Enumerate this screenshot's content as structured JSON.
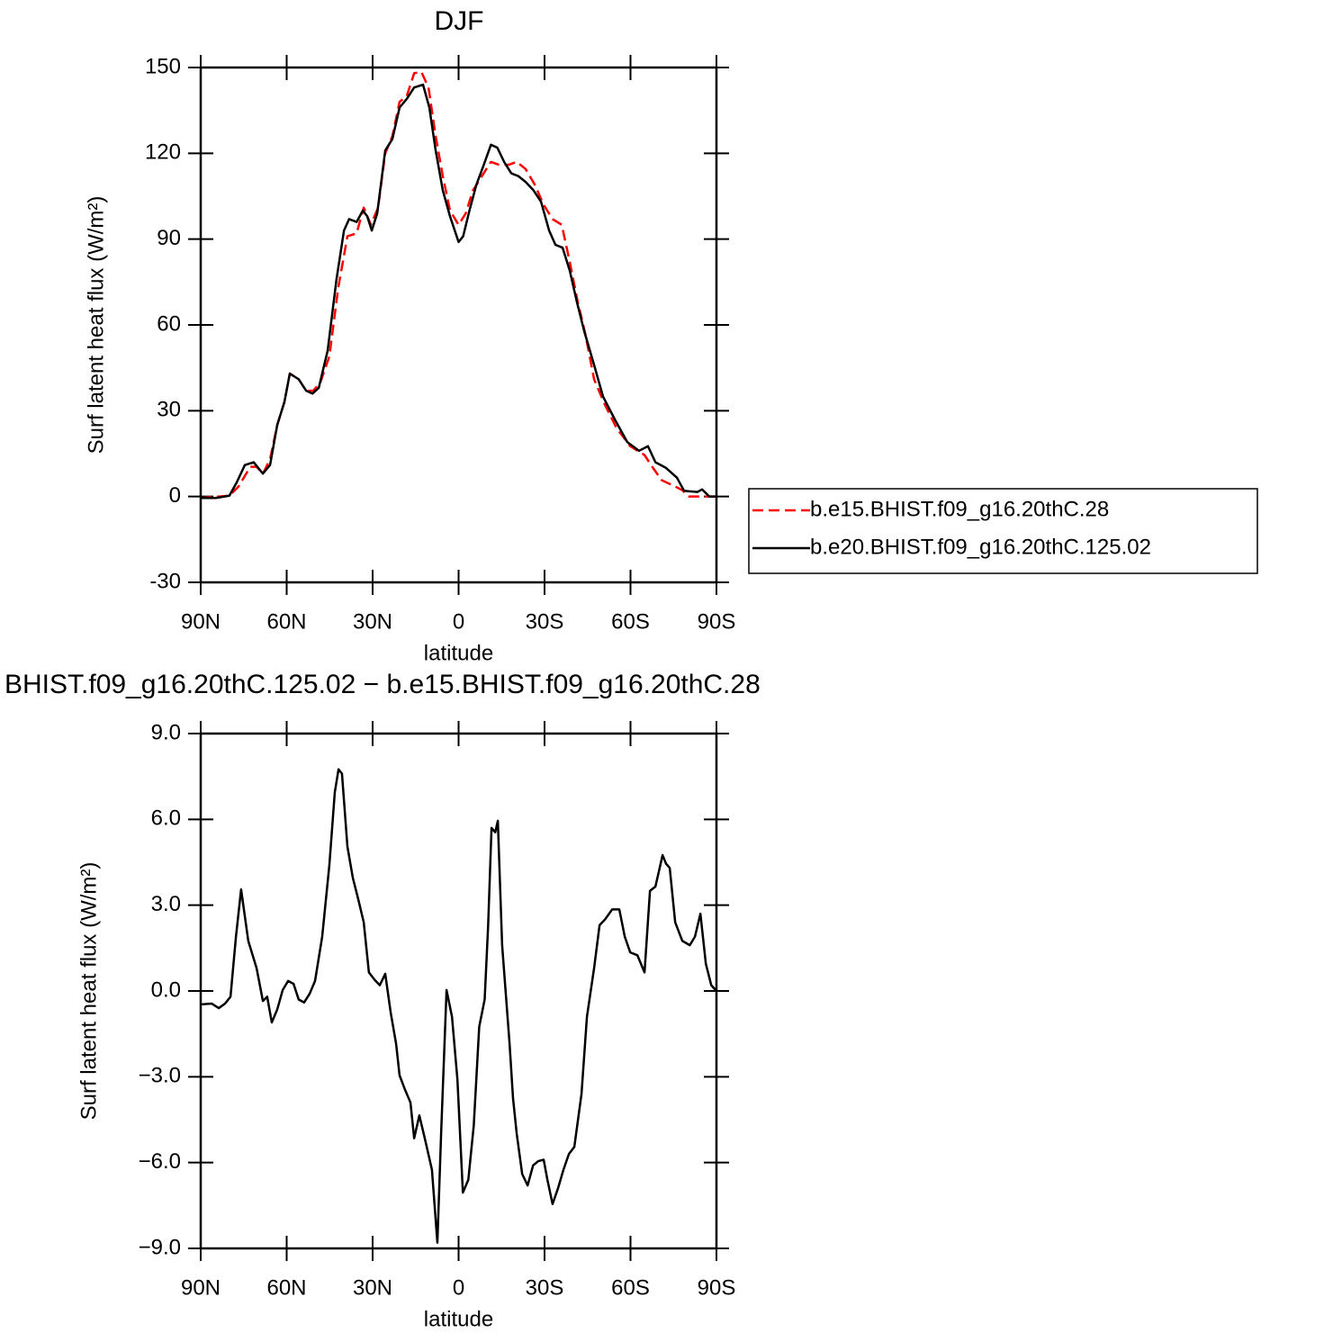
{
  "chart_data": [
    {
      "type": "line",
      "title": "DJF",
      "xlabel": "latitude",
      "ylabel": "Surf latent heat flux (W/m²)",
      "xlim": [
        90,
        -90
      ],
      "xticks": [
        {
          "value": 90,
          "label": "90N"
        },
        {
          "value": 60,
          "label": "60N"
        },
        {
          "value": 30,
          "label": "30N"
        },
        0,
        {
          "value": -30,
          "label": "30S"
        },
        {
          "value": -60,
          "label": "60S"
        },
        {
          "value": -90,
          "label": "90S"
        }
      ],
      "ylim": [
        -30,
        150
      ],
      "yticks": [
        -30,
        0,
        30,
        60,
        90,
        120,
        150
      ],
      "legend": "right",
      "series": [
        {
          "name": "b.e15.BHIST.f09_g16.20thC.28",
          "color": "#ff0000",
          "dash": true,
          "x": [
            90,
            80,
            76.8,
            72.7,
            70.5,
            68.3,
            65.8,
            63.3,
            60.8,
            58.9,
            55.8,
            53.2,
            50.7,
            48.2,
            45.1,
            42,
            38.8,
            35.6,
            33.1,
            30.6,
            28.1,
            25.6,
            23.1,
            20.6,
            18.1,
            15.5,
            13,
            10.5,
            8,
            5.5,
            3,
            0,
            -2.5,
            -5,
            -7.5,
            -11.3,
            -14.1,
            -17.5,
            -20.3,
            -23.4,
            -26.6,
            -29.7,
            -32.8,
            -36,
            -38.8,
            -41.6,
            -44.2,
            -47.3,
            -51.1,
            -55.1,
            -59.9,
            -64.9,
            -68,
            -70.9,
            -75.6,
            -78.1,
            -80.3,
            -90
          ],
          "values": [
            -0.5,
            0.3,
            3.5,
            10.4,
            10.4,
            8,
            13,
            25,
            33,
            43,
            41,
            37,
            37,
            40,
            49,
            73,
            91,
            92,
            101,
            95,
            101,
            120,
            126,
            138,
            140,
            148,
            148.5,
            143,
            126,
            112,
            100,
            95,
            99,
            107,
            111,
            117,
            116,
            116,
            117,
            114.5,
            109,
            102,
            97,
            95,
            82,
            68,
            57,
            41,
            32,
            24,
            17.6,
            14.5,
            9.8,
            5.7,
            3.5,
            2.2,
            0,
            0
          ]
        },
        {
          "name": "b.e20.BHIST.f09_g16.20thC.125.02",
          "color": "#000000",
          "dash": false,
          "x": [
            90,
            84.7,
            80,
            77.4,
            74.6,
            71.5,
            68.3,
            65.8,
            63.3,
            60.8,
            58.9,
            55.8,
            53.2,
            51,
            48.8,
            45.7,
            42.6,
            40,
            38.2,
            35.6,
            33.4,
            31.9,
            30.3,
            28.4,
            25.6,
            23.1,
            20.6,
            18.1,
            15.5,
            12.4,
            10.2,
            8,
            5.5,
            3,
            0,
            -1.6,
            -3.8,
            -6.2,
            -8.8,
            -11.3,
            -13.5,
            -15.9,
            -18.4,
            -20.9,
            -23.4,
            -26.2,
            -28.8,
            -31.6,
            -33.8,
            -36.3,
            -38.8,
            -41.3,
            -43.8,
            -47.3,
            -50.4,
            -54.5,
            -58.9,
            -63,
            -66.1,
            -68.7,
            -72.4,
            -76.2,
            -78.7,
            -83.4,
            -85,
            -87.5,
            -90
          ],
          "values": [
            -0.5,
            -0.5,
            0.3,
            5,
            11,
            12,
            8,
            11,
            25,
            33,
            43,
            41,
            37,
            36,
            38,
            51,
            76,
            93,
            97,
            96,
            100,
            98,
            93,
            99,
            121,
            125,
            136,
            139,
            143,
            144,
            136,
            121,
            107,
            98,
            89,
            91,
            100,
            109,
            116,
            123,
            122,
            117,
            113,
            112,
            110,
            107,
            103,
            93,
            88,
            87,
            79,
            68,
            58,
            46,
            35,
            27,
            19,
            16,
            17.6,
            12,
            10,
            6.6,
            2,
            1.6,
            2.5,
            0,
            0
          ]
        }
      ]
    },
    {
      "type": "line",
      "title": "BHIST.f09_g16.20thC.125.02 − b.e15.BHIST.f09_g16.20thC.28",
      "xlabel": "latitude",
      "ylabel": "Surf latent heat flux (W/m²)",
      "xlim": [
        90,
        -90
      ],
      "xticks": [
        {
          "value": 90,
          "label": "90N"
        },
        {
          "value": 60,
          "label": "60N"
        },
        {
          "value": 30,
          "label": "30N"
        },
        0,
        {
          "value": -30,
          "label": "30S"
        },
        {
          "value": -60,
          "label": "60S"
        },
        {
          "value": -90,
          "label": "90S"
        }
      ],
      "ylim": [
        -9,
        9
      ],
      "yticks": [
        {
          "value": -9,
          "label": "−9.0"
        },
        {
          "value": -6,
          "label": "−6.0"
        },
        {
          "value": -3,
          "label": "−3.0"
        },
        {
          "value": 0,
          "label": "0.0"
        },
        {
          "value": 3,
          "label": "3.0"
        },
        {
          "value": 6,
          "label": "6.0"
        },
        {
          "value": 9,
          "label": "9.0"
        }
      ],
      "series": [
        {
          "color": "#000000",
          "dash": false,
          "x": [
            90,
            86.2,
            83.7,
            81.5,
            79.6,
            77.7,
            75.9,
            73.4,
            70.5,
            68.3,
            66.8,
            65.2,
            63.3,
            61.4,
            59.5,
            57.6,
            55.8,
            53.9,
            52,
            50.1,
            47.6,
            45.1,
            43.2,
            41.9,
            40.7,
            38.8,
            36.9,
            35,
            33.1,
            31.3,
            29.4,
            27.5,
            25.6,
            23.7,
            21.8,
            20.6,
            18.7,
            16.8,
            15.5,
            13.7,
            11.8,
            9.3,
            7.4,
            6.1,
            4.2,
            2.3,
            0.4,
            -1.5,
            -3.4,
            -5.3,
            -7.2,
            -9.1,
            -10.3,
            -11.5,
            -12.8,
            -13.7,
            -15.2,
            -17.8,
            -19,
            -20.3,
            -22.2,
            -24.1,
            -26,
            -27.8,
            -29.7,
            -31,
            -32.8,
            -34.7,
            -36.6,
            -38.5,
            -40.4,
            -42.9,
            -44.8,
            -47.3,
            -49.2,
            -51.1,
            -53.6,
            -56.1,
            -58,
            -59.9,
            -62.4,
            -64.9,
            -66.8,
            -68.7,
            -71.2,
            -72.4,
            -73.7,
            -75.6,
            -78.1,
            -80.7,
            -82.5,
            -84.4,
            -86.3,
            -88.2,
            -90
          ],
          "values": [
            -0.47,
            -0.44,
            -0.6,
            -0.44,
            -0.2,
            1.9,
            3.55,
            1.75,
            0.8,
            -0.35,
            -0.2,
            -1.1,
            -0.65,
            0.03,
            0.35,
            0.25,
            -0.3,
            -0.4,
            -0.1,
            0.35,
            1.9,
            4.4,
            6.95,
            7.75,
            7.6,
            5.05,
            3.95,
            3.2,
            2.4,
            0.65,
            0.4,
            0.2,
            0.6,
            -0.75,
            -1.85,
            -2.95,
            -3.45,
            -3.9,
            -5.15,
            -4.35,
            -5.15,
            -6.25,
            -8.8,
            -5,
            0.03,
            -0.9,
            -3.1,
            -7.05,
            -6.6,
            -4.7,
            -1.25,
            -0.3,
            2.25,
            5.7,
            5.55,
            5.95,
            1.6,
            -1.85,
            -3.75,
            -5,
            -6.4,
            -6.8,
            -6.1,
            -5.95,
            -5.9,
            -6.6,
            -7.45,
            -6.9,
            -6.25,
            -5.7,
            -5.45,
            -3.6,
            -0.9,
            0.8,
            2.3,
            2.5,
            2.85,
            2.85,
            1.9,
            1.35,
            1.25,
            0.65,
            3.5,
            3.65,
            4.75,
            4.45,
            4.3,
            2.4,
            1.75,
            1.6,
            1.9,
            2.7,
            0.95,
            0.2,
            0
          ]
        }
      ]
    }
  ]
}
